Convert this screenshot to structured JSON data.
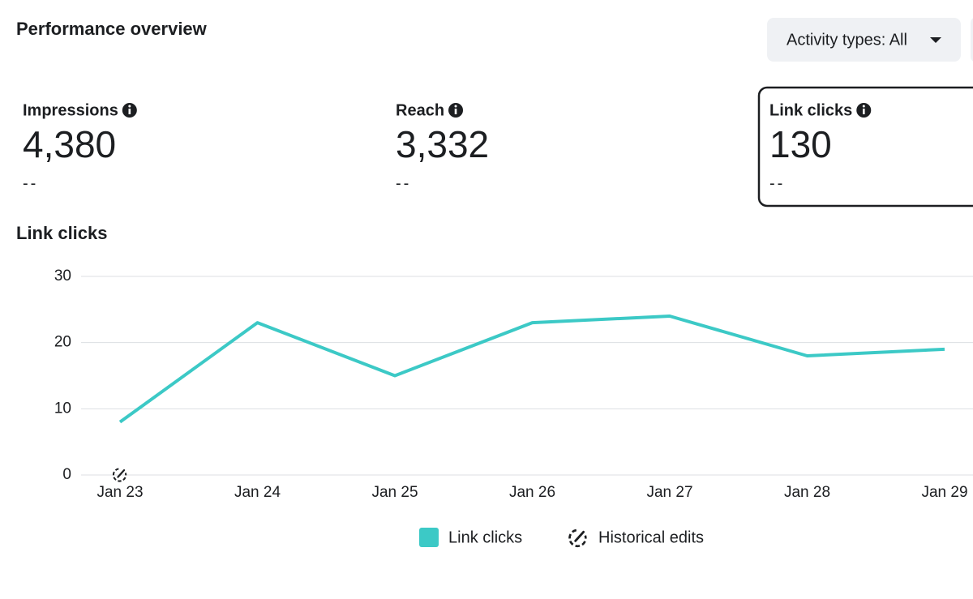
{
  "header": {
    "title": "Performance overview",
    "filter": "Activity types: All"
  },
  "metrics": [
    {
      "label": "Impressions",
      "value": "4,380",
      "change": "--"
    },
    {
      "label": "Reach",
      "value": "3,332",
      "change": "--"
    },
    {
      "label": "Link clicks",
      "value": "130",
      "change": "--"
    }
  ],
  "chart_data": {
    "type": "line",
    "title": "Link clicks",
    "categories": [
      "Jan 23",
      "Jan 24",
      "Jan 25",
      "Jan 26",
      "Jan 27",
      "Jan 28",
      "Jan 29"
    ],
    "series": [
      {
        "name": "Link clicks",
        "color": "#3cc9c6",
        "values": [
          8,
          23,
          15,
          23,
          24,
          18,
          19
        ]
      }
    ],
    "ylim": [
      0,
      30
    ],
    "yticks": [
      0,
      10,
      20,
      30
    ],
    "grid": true,
    "annotation": "Historical edits"
  }
}
